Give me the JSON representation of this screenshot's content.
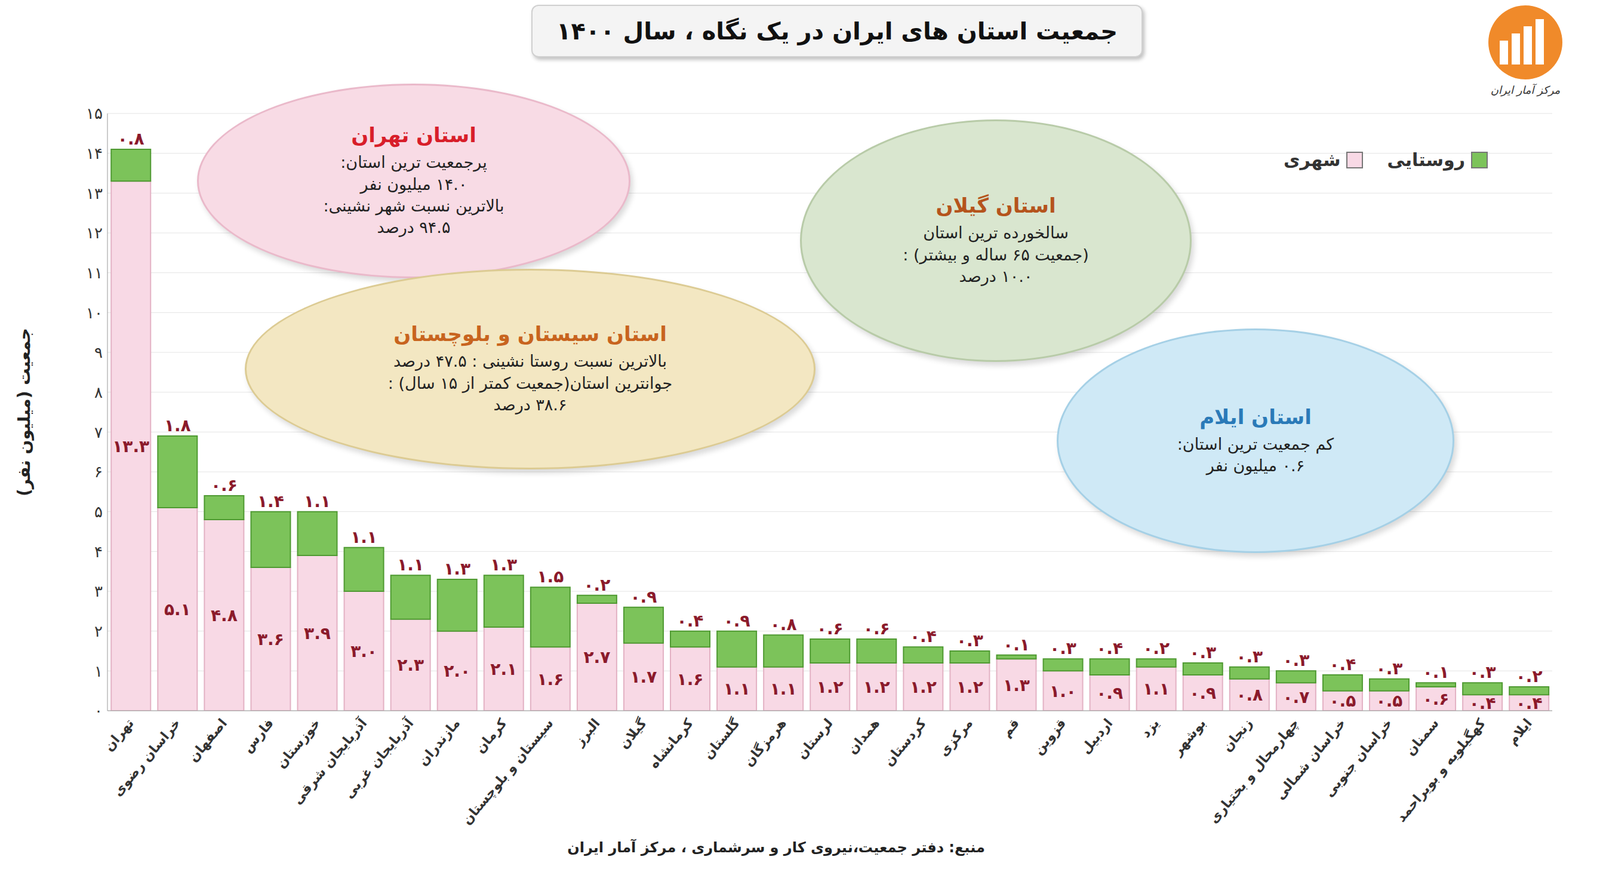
{
  "chart_data": {
    "type": "bar",
    "title": "جمعیت استان های ایران در یک نگاه ، سال ۱۴۰۰",
    "y_label": "جمعیت (میلیون نفر)",
    "source": "منبع: دفتر جمعیت،نیروی کار و سرشماری ، مرکز آمار ایران",
    "logo": "مرکز آمار ایران",
    "categories": [
      "تهران",
      "خراسان رضوی",
      "اصفهان",
      "فارس",
      "خوزستان",
      "آذربایجان شرقی",
      "آذربایجان غربی",
      "مازندران",
      "کرمان",
      "سیستان و بلوچستان",
      "البرز",
      "گیلان",
      "کرمانشاه",
      "گلستان",
      "هرمزگان",
      "لرستان",
      "همدان",
      "کردستان",
      "مرکزی",
      "قم",
      "قزوین",
      "اردبیل",
      "یزد",
      "بوشهر",
      "زنجان",
      "چهارمحال و بختیاری",
      "خراسان شمالی",
      "خراسان جنوبی",
      "سمنان",
      "کهگیلویه و بویراحمد",
      "ایلام"
    ],
    "series": [
      {
        "name": "شهری",
        "color": "#f8d9e5",
        "values": [
          13.3,
          5.1,
          4.8,
          3.6,
          3.9,
          3.0,
          2.3,
          2.0,
          2.1,
          1.6,
          2.7,
          1.7,
          1.6,
          1.1,
          1.1,
          1.2,
          1.2,
          1.2,
          1.2,
          1.3,
          1.0,
          0.9,
          1.1,
          0.9,
          0.8,
          0.7,
          0.5,
          0.5,
          0.6,
          0.4,
          0.4
        ],
        "value_labels": [
          "۱۳.۳",
          "۵.۱",
          "۴.۸",
          "۳.۶",
          "۳.۹",
          "۳.۰",
          "۲.۳",
          "۲.۰",
          "۲.۱",
          "۱.۶",
          "۲.۷",
          "۱.۷",
          "۱.۶",
          "۱.۱",
          "۱.۱",
          "۱.۲",
          "۱.۲",
          "۱.۲",
          "۱.۲",
          "۱.۳",
          "۱.۰",
          "۰.۹",
          "۱.۱",
          "۰.۹",
          "۰.۸",
          "۰.۷",
          "۰.۵",
          "۰.۵",
          "۰.۶",
          "۰.۴",
          "۰.۴"
        ]
      },
      {
        "name": "روستایی",
        "color": "#7cc35a",
        "values": [
          0.8,
          1.8,
          0.6,
          1.4,
          1.1,
          1.1,
          1.1,
          1.3,
          1.3,
          1.5,
          0.2,
          0.9,
          0.4,
          0.9,
          0.8,
          0.6,
          0.6,
          0.4,
          0.3,
          0.1,
          0.3,
          0.4,
          0.2,
          0.3,
          0.3,
          0.3,
          0.4,
          0.3,
          0.1,
          0.3,
          0.2
        ],
        "value_labels": [
          "۰.۸",
          "۱.۸",
          "۰.۶",
          "۱.۴",
          "۱.۱",
          "۱.۱",
          "۱.۱",
          "۱.۳",
          "۱.۳",
          "۱.۵",
          "۰.۲",
          "۰.۹",
          "۰.۴",
          "۰.۹",
          "۰.۸",
          "۰.۶",
          "۰.۶",
          "۰.۴",
          "۰.۳",
          "۰.۱",
          "۰.۳",
          "۰.۴",
          "۰.۲",
          "۰.۳",
          "۰.۳",
          "۰.۳",
          "۰.۴",
          "۰.۳",
          "۰.۱",
          "۰.۳",
          "۰.۲"
        ]
      }
    ],
    "ylim": [
      0,
      15
    ],
    "yticks": [
      {
        "value": 0,
        "label": "۰"
      },
      {
        "value": 1,
        "label": "۱"
      },
      {
        "value": 2,
        "label": "۲"
      },
      {
        "value": 3,
        "label": "۳"
      },
      {
        "value": 4,
        "label": "۴"
      },
      {
        "value": 5,
        "label": "۵"
      },
      {
        "value": 6,
        "label": "۶"
      },
      {
        "value": 7,
        "label": "۷"
      },
      {
        "value": 8,
        "label": "۸"
      },
      {
        "value": 9,
        "label": "۹"
      },
      {
        "value": 10,
        "label": "۱۰"
      },
      {
        "value": 11,
        "label": "۱۱"
      },
      {
        "value": 12,
        "label": "۱۲"
      },
      {
        "value": 13,
        "label": "۱۳"
      },
      {
        "value": 14,
        "label": "۱۴"
      },
      {
        "value": 15,
        "label": "۱۵"
      }
    ],
    "grid": true,
    "stacked": true,
    "data_labels": true,
    "legend": "upper right",
    "annotations": [
      {
        "title": "استان تهران",
        "lines": [
          "پرجمعیت ترین استان:",
          "۱۴.۰ میلیون نفر",
          "بالاترین نسبت شهر نشینی:",
          "۹۴.۵ درصد"
        ]
      },
      {
        "title": "استان سیستان و بلوچستان",
        "lines": [
          "بالاترین نسبت روستا نشینی : ۴۷.۵ درصد",
          "جوانترین استان(جمعیت کمتر از ۱۵ سال) :",
          "۳۸.۶ درصد"
        ]
      },
      {
        "title": "استان گیلان",
        "lines": [
          "سالخورده ترین استان",
          "(جمعیت ۶۵ ساله و بیشتر) :",
          "۱۰.۰ درصد"
        ]
      },
      {
        "title": "استان ایلام",
        "lines": [
          "کم جمعیت ترین استان:",
          "۰.۶ میلیون نفر"
        ]
      }
    ]
  }
}
